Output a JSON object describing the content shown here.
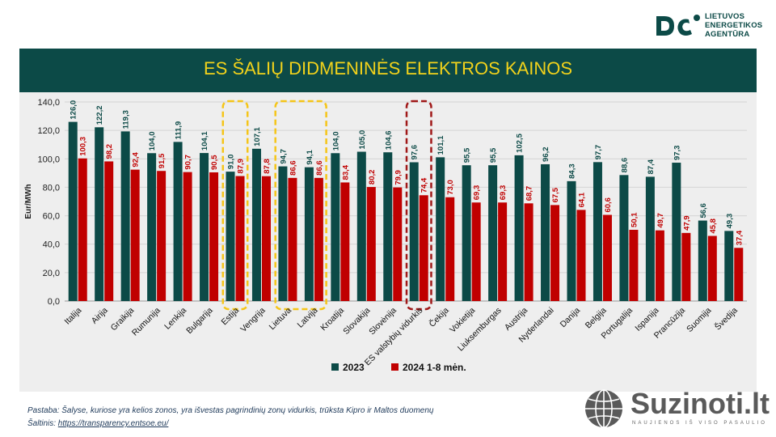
{
  "logo": {
    "line1": "LIETUVOS",
    "line2": "ENERGETIKOS",
    "line3": "AGENTŪRA"
  },
  "watermark": {
    "name": "Suzinoti.lt",
    "tagline": "NAUJIENOS IŠ VISO PASAULIO"
  },
  "footnote": {
    "note": "Pastaba: Šalyse, kuriose yra kelios zonos, yra išvestas pagrindinių zonų vidurkis, trūksta Kipro ir Maltos duomenų",
    "source_label": "Šaltinis: ",
    "source_link": "https://transparency.entsoe.eu/"
  },
  "colors": {
    "series2023": "#0c4a47",
    "series2024": "#c00000",
    "highlight_yellow": "#f5c518",
    "highlight_red": "#a01818",
    "banner": "#0c4a47",
    "title": "#f2d21b"
  },
  "chart_data": {
    "type": "bar",
    "title": "ES ŠALIŲ DIDMENINĖS ELEKTROS KAINOS",
    "ylabel": "Eur/MWh",
    "ylim": [
      0,
      140
    ],
    "yticks": [
      "0,0",
      "20,0",
      "40,0",
      "60,0",
      "80,0",
      "100,0",
      "120,0",
      "140,0"
    ],
    "grid": true,
    "legend_position": "bottom",
    "categories": [
      "Italija",
      "Airija",
      "Graikija",
      "Rumunija",
      "Lenkija",
      "Bulgarija",
      "Estija",
      "Vengrija",
      "Lietuva",
      "Latvija",
      "Kroatija",
      "Slovakija",
      "Slovėnija",
      "ES valstybių vidurkis",
      "Čekija",
      "Vokietija",
      "Liuksemburgas",
      "Austrija",
      "Nyderlandai",
      "Danija",
      "Belgija",
      "Portugalija",
      "Ispanija",
      "Prancūzija",
      "Suomija",
      "Švedija"
    ],
    "series": [
      {
        "name": "2023",
        "values": [
          126.0,
          122.2,
          119.3,
          104.0,
          111.9,
          104.1,
          91.0,
          107.1,
          94.7,
          94.1,
          104.0,
          105.0,
          104.6,
          97.6,
          101.1,
          95.5,
          95.5,
          102.5,
          96.2,
          84.3,
          97.7,
          88.6,
          87.4,
          97.3,
          56.6,
          49.3
        ],
        "labels": [
          "126,0",
          "122,2",
          "119,3",
          "104,0",
          "111,9",
          "104,1",
          "91,0",
          "107,1",
          "94,7",
          "94,1",
          "104,0",
          "105,0",
          "104,6",
          "97,6",
          "101,1",
          "95,5",
          "95,5",
          "102,5",
          "96,2",
          "84,3",
          "97,7",
          "88,6",
          "87,4",
          "97,3",
          "56,6",
          "49,3"
        ]
      },
      {
        "name": "2024 1-8 mėn.",
        "values": [
          100.3,
          98.2,
          92.4,
          91.5,
          90.7,
          90.5,
          87.9,
          87.8,
          86.6,
          86.6,
          83.4,
          80.2,
          79.9,
          74.4,
          73.0,
          69.3,
          69.3,
          68.7,
          67.5,
          64.1,
          60.6,
          50.1,
          49.7,
          47.9,
          45.8,
          37.4
        ],
        "labels": [
          "100,3",
          "98,2",
          "92,4",
          "91,5",
          "90,7",
          "90,5",
          "87,9",
          "87,8",
          "86,6",
          "86,6",
          "83,4",
          "80,2",
          "79,9",
          "74,4",
          "73,0",
          "69,3",
          "69,3",
          "68,7",
          "67,5",
          "64,1",
          "60,6",
          "50,1",
          "49,7",
          "47,9",
          "45,8",
          "37,4"
        ]
      }
    ],
    "highlights": [
      {
        "categories": [
          "Estija"
        ],
        "color": "yellow"
      },
      {
        "categories": [
          "Lietuva",
          "Latvija"
        ],
        "color": "yellow"
      },
      {
        "categories": [
          "ES valstybių vidurkis"
        ],
        "color": "red"
      }
    ]
  }
}
